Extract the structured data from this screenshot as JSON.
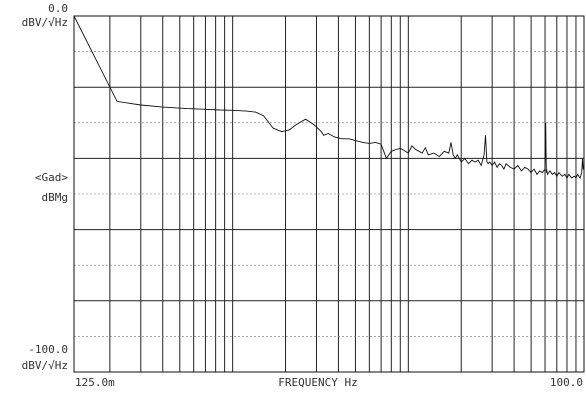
{
  "chart_data": {
    "type": "line",
    "title": "",
    "xlabel": "FREQUENCY  Hz",
    "x_start_label": "125.0m",
    "x_end_label": "100.0",
    "x_scale": "log",
    "xlim": [
      0.125,
      100.0
    ],
    "top_label_value": "0.0",
    "top_label_unit": "dBV/√Hz",
    "mid_label_name": "<Gad>",
    "mid_label_unit": "dBMg",
    "bottom_label_value": "-100.0",
    "bottom_label_unit": "dBV/√Hz",
    "ylim": [
      -100,
      0
    ],
    "grid": true,
    "series": [
      {
        "x": [
          0.125,
          0.22,
          0.3,
          0.4,
          0.55,
          0.7,
          0.85,
          1.0,
          1.2,
          1.35,
          1.5,
          1.7,
          1.9,
          2.1,
          2.3,
          2.6,
          2.9,
          3.2,
          3.3,
          3.5,
          3.8,
          4.2,
          4.6,
          5.0,
          5.5,
          6.0,
          6.5,
          7.0,
          7.5,
          8.0,
          8.5,
          9.0,
          9.5,
          10.0,
          10.5,
          11.0,
          11.5,
          12.0,
          12.5,
          13.0,
          14.0,
          15.0,
          16.0,
          17.0,
          17.5,
          18.0,
          18.5,
          19.0,
          20.0,
          21.0,
          22.0,
          23.0,
          24.0,
          25.0,
          26.0,
          27.0,
          27.5,
          28.0,
          28.5,
          29.0,
          30.0,
          31.0,
          32.0,
          33.0,
          34.0,
          35.0,
          36.0,
          38.0,
          40.0,
          42.0,
          44.0,
          46.0,
          48.0,
          50.0,
          52.0,
          54.0,
          56.0,
          58.0,
          60.0,
          60.5,
          61.0,
          61.5,
          62.0,
          64.0,
          66.0,
          68.0,
          70.0,
          72.0,
          75.0,
          78.0,
          80.0,
          82.0,
          85.0,
          88.0,
          90.0,
          92.0,
          95.0,
          97.0,
          98.0,
          99.0,
          100.0
        ],
        "y": [
          0.0,
          -24.0,
          -25.0,
          -25.6,
          -26.0,
          -26.2,
          -26.4,
          -26.5,
          -26.7,
          -27.0,
          -28.0,
          -31.5,
          -32.5,
          -32.0,
          -30.5,
          -29.0,
          -30.5,
          -32.5,
          -33.5,
          -33.0,
          -34.0,
          -34.5,
          -34.5,
          -35.0,
          -35.5,
          -35.8,
          -35.5,
          -36.0,
          -40.0,
          -38.0,
          -37.5,
          -37.2,
          -37.8,
          -38.5,
          -36.5,
          -37.5,
          -38.0,
          -38.5,
          -37.0,
          -39.0,
          -38.5,
          -39.5,
          -38.0,
          -38.5,
          -35.5,
          -39.0,
          -40.0,
          -39.0,
          -41.0,
          -40.0,
          -41.5,
          -40.5,
          -41.0,
          -40.5,
          -42.0,
          -39.0,
          -33.5,
          -41.0,
          -41.5,
          -41.0,
          -42.0,
          -41.0,
          -42.5,
          -41.5,
          -42.0,
          -43.0,
          -41.5,
          -42.5,
          -43.0,
          -42.0,
          -43.5,
          -42.5,
          -43.0,
          -44.0,
          -43.0,
          -44.5,
          -43.5,
          -44.0,
          -43.0,
          -30.0,
          -44.0,
          -43.5,
          -44.5,
          -43.5,
          -44.5,
          -44.0,
          -45.0,
          -44.0,
          -45.0,
          -44.5,
          -45.5,
          -44.5,
          -45.5,
          -45.0,
          -45.5,
          -44.5,
          -45.5,
          -44.0,
          -40.0,
          -43.0,
          -43.0
        ]
      }
    ]
  }
}
